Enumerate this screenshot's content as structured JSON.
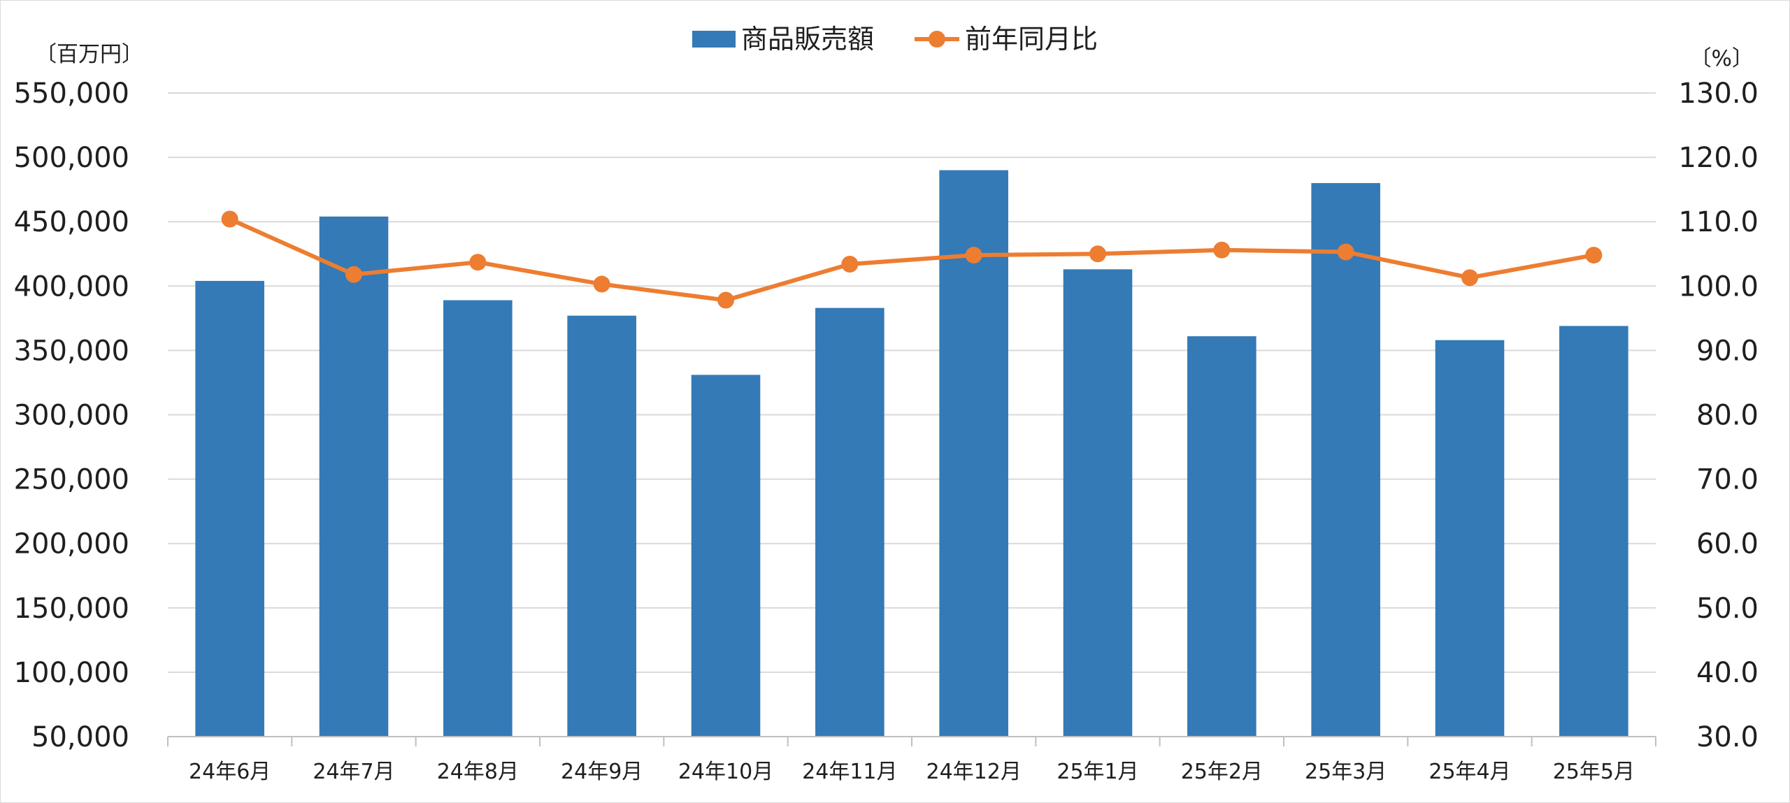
{
  "chart_data": {
    "type": "bar",
    "categories": [
      "24年6月",
      "24年7月",
      "24年8月",
      "24年9月",
      "24年10月",
      "24年11月",
      "24年12月",
      "25年1月",
      "25年2月",
      "25年3月",
      "25年4月",
      "25年5月"
    ],
    "series": [
      {
        "name": "商品販売額",
        "type": "bar",
        "axis": "left",
        "color": "#337ab7",
        "values": [
          404000,
          454000,
          389000,
          377000,
          331000,
          383000,
          490000,
          413000,
          361000,
          480000,
          358000,
          369000
        ]
      },
      {
        "name": "前年同月比",
        "type": "line",
        "axis": "right",
        "color": "#ed7d31",
        "values": [
          110.4,
          101.8,
          103.7,
          100.3,
          97.8,
          103.4,
          104.8,
          105.0,
          105.6,
          105.3,
          101.3,
          104.8
        ]
      }
    ],
    "left_axis": {
      "unit": "〔百万円〕",
      "ylim": [
        50000,
        550000
      ],
      "ticks": [
        "50,000",
        "100,000",
        "150,000",
        "200,000",
        "250,000",
        "300,000",
        "350,000",
        "400,000",
        "450,000",
        "500,000",
        "550,000"
      ]
    },
    "right_axis": {
      "unit": "〔%〕",
      "ylim": [
        30,
        130
      ],
      "ticks": [
        "30.0",
        "40.0",
        "50.0",
        "60.0",
        "70.0",
        "80.0",
        "90.0",
        "100.0",
        "110.0",
        "120.0",
        "130.0"
      ]
    },
    "grid": true,
    "legend_position": "top-center",
    "gridline_color": "#d9d9d9"
  }
}
